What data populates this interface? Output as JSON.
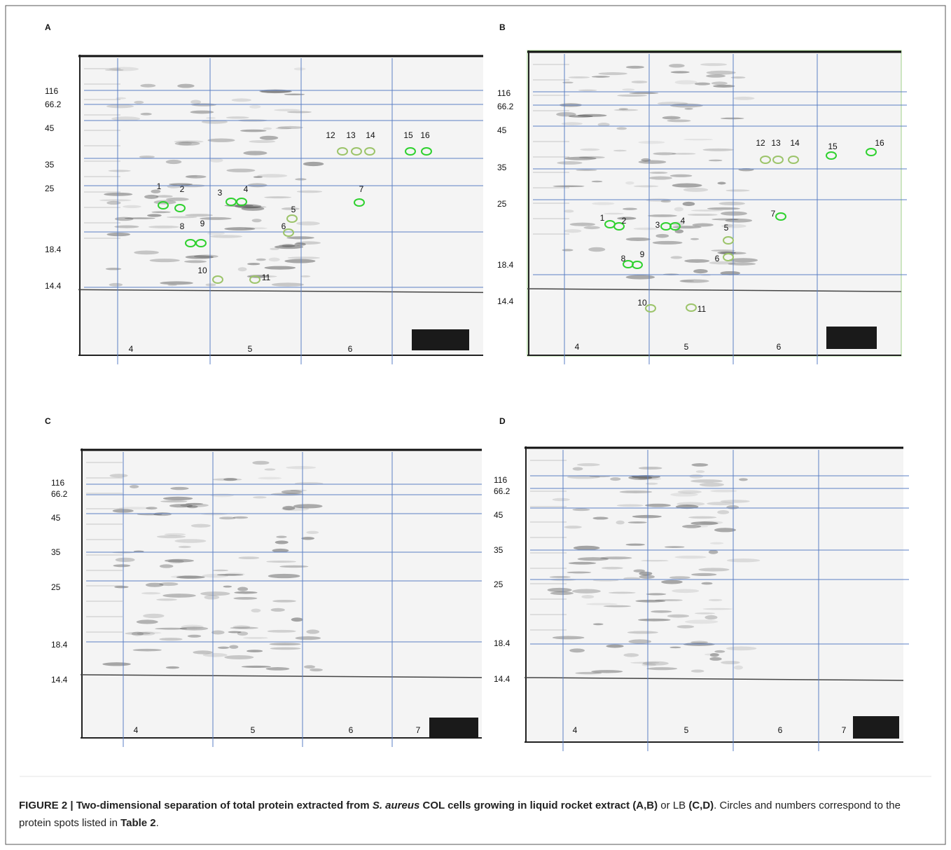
{
  "panels": [
    {
      "letter": "A",
      "mw_labels": [
        "116",
        "66.2",
        "45",
        "35",
        "25",
        "18.4",
        "14.4"
      ],
      "ph_labels": [
        "4",
        "5",
        "6"
      ],
      "spots": [
        "1",
        "2",
        "3",
        "4",
        "5",
        "6",
        "7",
        "8",
        "9",
        "10",
        "11",
        "12",
        "13",
        "14",
        "15",
        "16"
      ]
    },
    {
      "letter": "B",
      "mw_labels": [
        "116",
        "66.2",
        "45",
        "35",
        "25",
        "18.4",
        "14.4"
      ],
      "ph_labels": [
        "4",
        "5",
        "6"
      ],
      "spots": [
        "1",
        "2",
        "3",
        "4",
        "5",
        "6",
        "7",
        "8",
        "9",
        "10",
        "11",
        "12",
        "13",
        "14",
        "15",
        "16"
      ]
    },
    {
      "letter": "C",
      "mw_labels": [
        "116",
        "66.2",
        "45",
        "35",
        "25",
        "18.4",
        "14.4"
      ],
      "ph_labels": [
        "4",
        "5",
        "6",
        "7"
      ],
      "spots": []
    },
    {
      "letter": "D",
      "mw_labels": [
        "116",
        "66.2",
        "45",
        "35",
        "25",
        "18.4",
        "14.4"
      ],
      "ph_labels": [
        "4",
        "5",
        "6",
        "7"
      ],
      "spots": []
    }
  ],
  "caption": {
    "segments": [
      "FIGURE 2 | Two-dimensional separation of total protein extracted from ",
      "S. aureus",
      " COL cells growing in liquid rocket extract (A,B)",
      " or LB ",
      "(C,D)",
      ". Circles and numbers correspond to the protein spots listed in ",
      "Table 2",
      "."
    ]
  }
}
